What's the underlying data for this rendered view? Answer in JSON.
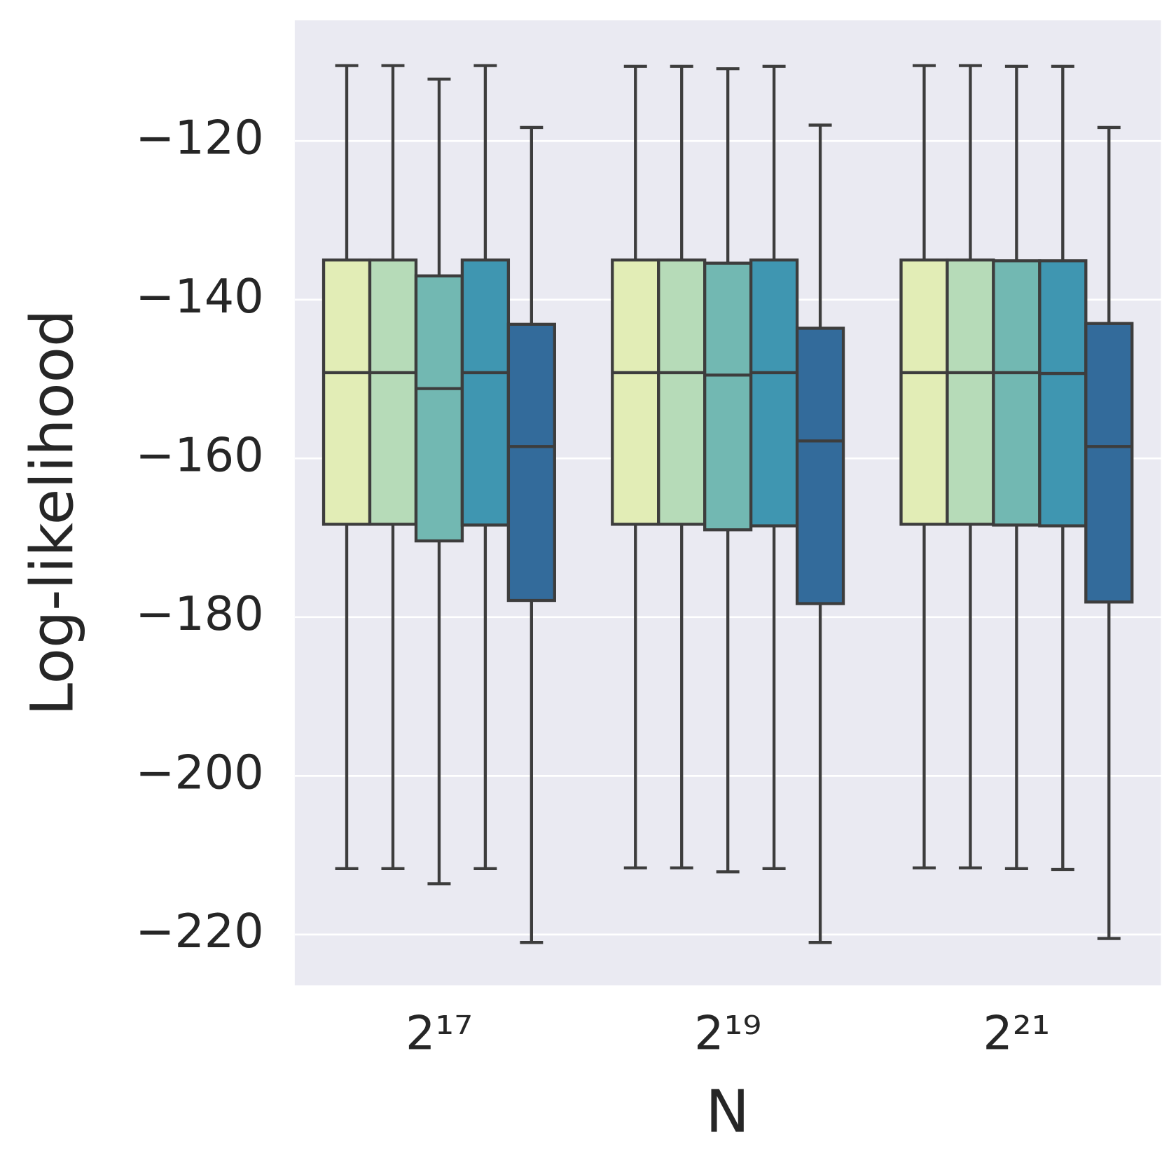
{
  "chart_data": {
    "type": "box",
    "x_label": "N",
    "y_label": "Log-likelihood",
    "categories": [
      "2¹⁷",
      "2¹⁹",
      "2²¹"
    ],
    "ylim": [
      -226.4,
      -104.8
    ],
    "yticks": [
      {
        "value": -120,
        "label": "−120"
      },
      {
        "value": -140,
        "label": "−140"
      },
      {
        "value": -160,
        "label": "−160"
      },
      {
        "value": -180,
        "label": "−180"
      },
      {
        "value": -200,
        "label": "−200"
      },
      {
        "value": -220,
        "label": "−220"
      }
    ],
    "grid": true,
    "series": [
      {
        "color": "#e2edb6",
        "whislo": [
          -211.7,
          -211.6,
          -211.6
        ],
        "q1": [
          -168.3,
          -168.3,
          -168.3
        ],
        "med": [
          -149.2,
          -149.2,
          -149.2
        ],
        "q3": [
          -135.0,
          -135.0,
          -135.0
        ],
        "whishi": [
          -110.5,
          -110.6,
          -110.5
        ]
      },
      {
        "color": "#b6dbb8",
        "whislo": [
          -211.7,
          -211.6,
          -211.6
        ],
        "q1": [
          -168.3,
          -168.3,
          -168.3
        ],
        "med": [
          -149.2,
          -149.2,
          -149.2
        ],
        "q3": [
          -135.0,
          -135.0,
          -135.0
        ],
        "whishi": [
          -110.5,
          -110.6,
          -110.5
        ]
      },
      {
        "color": "#72b8b2",
        "whislo": [
          -213.6,
          -212.1,
          -211.7
        ],
        "q1": [
          -170.4,
          -169.0,
          -168.4
        ],
        "med": [
          -151.2,
          -149.5,
          -149.2
        ],
        "q3": [
          -137.0,
          -135.4,
          -135.1
        ],
        "whishi": [
          -112.2,
          -110.9,
          -110.6
        ]
      },
      {
        "color": "#3f96b1",
        "whislo": [
          -211.7,
          -211.7,
          -211.8
        ],
        "q1": [
          -168.4,
          -168.5,
          -168.5
        ],
        "med": [
          -149.2,
          -149.2,
          -149.3
        ],
        "q3": [
          -135.0,
          -135.0,
          -135.1
        ],
        "whishi": [
          -110.5,
          -110.6,
          -110.6
        ]
      },
      {
        "color": "#336b9b",
        "whislo": [
          -221.0,
          -221.0,
          -220.5
        ],
        "q1": [
          -177.9,
          -178.3,
          -178.1
        ],
        "med": [
          -158.5,
          -157.8,
          -158.5
        ],
        "q3": [
          -143.1,
          -143.6,
          -143.0
        ],
        "whishi": [
          -118.3,
          -118.0,
          -118.3
        ]
      }
    ]
  }
}
